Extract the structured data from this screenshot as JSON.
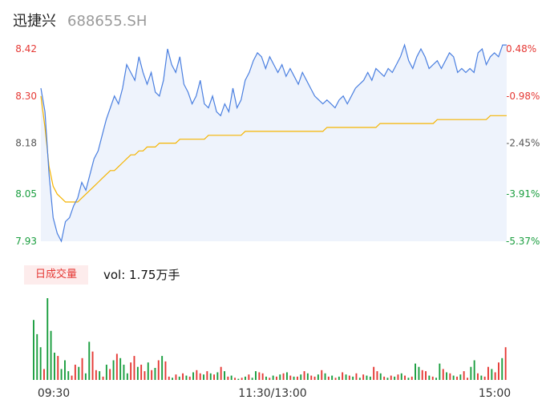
{
  "header": {
    "name": "迅捷兴",
    "code": "688655.SH"
  },
  "volume_panel": {
    "badge": "日成交量",
    "vol_label": "vol: 1.75万手"
  },
  "colors": {
    "up": "#e53935",
    "down": "#1a9e3f",
    "neutral": "#555555",
    "price_line": "#4a7fe0",
    "avg_line": "#f5b400",
    "area_fill": "#eef3fc"
  },
  "chart_data": [
    {
      "type": "line",
      "title": "",
      "x_tick_labels": [
        "09:30",
        "11:30/13:00",
        "15:00"
      ],
      "y_left_ticks": [
        8.42,
        8.3,
        8.18,
        8.05,
        7.93
      ],
      "y_left_tick_labels": [
        "8.42",
        "8.30",
        "8.18",
        "8.05",
        "7.93"
      ],
      "y_right_tick_labels": [
        "0.48%",
        "-0.98%",
        "-2.45%",
        "-3.91%",
        "-5.37%"
      ],
      "ylim": [
        7.93,
        8.42
      ],
      "series": [
        {
          "role": "price",
          "values": [
            8.32,
            8.26,
            8.1,
            7.99,
            7.95,
            7.93,
            7.98,
            7.99,
            8.02,
            8.04,
            8.08,
            8.06,
            8.1,
            8.14,
            8.16,
            8.2,
            8.24,
            8.27,
            8.3,
            8.28,
            8.32,
            8.38,
            8.36,
            8.34,
            8.4,
            8.36,
            8.33,
            8.36,
            8.31,
            8.3,
            8.34,
            8.42,
            8.38,
            8.36,
            8.4,
            8.33,
            8.31,
            8.28,
            8.3,
            8.34,
            8.28,
            8.27,
            8.3,
            8.26,
            8.25,
            8.28,
            8.26,
            8.32,
            8.27,
            8.29,
            8.34,
            8.36,
            8.39,
            8.41,
            8.4,
            8.37,
            8.4,
            8.38,
            8.36,
            8.38,
            8.35,
            8.37,
            8.35,
            8.33,
            8.36,
            8.34,
            8.32,
            8.3,
            8.29,
            8.28,
            8.29,
            8.28,
            8.27,
            8.29,
            8.3,
            8.28,
            8.3,
            8.32,
            8.33,
            8.34,
            8.36,
            8.34,
            8.37,
            8.36,
            8.35,
            8.37,
            8.36,
            8.38,
            8.4,
            8.43,
            8.39,
            8.37,
            8.4,
            8.42,
            8.4,
            8.37,
            8.38,
            8.39,
            8.37,
            8.39,
            8.41,
            8.4,
            8.36,
            8.37,
            8.36,
            8.37,
            8.36,
            8.41,
            8.42,
            8.38,
            8.4,
            8.41,
            8.4,
            8.43,
            8.43
          ],
          "color": "#4a7fe0"
        },
        {
          "role": "average",
          "values": [
            8.3,
            8.22,
            8.12,
            8.07,
            8.05,
            8.04,
            8.03,
            8.03,
            8.03,
            8.03,
            8.04,
            8.05,
            8.06,
            8.07,
            8.08,
            8.09,
            8.1,
            8.11,
            8.11,
            8.12,
            8.13,
            8.14,
            8.15,
            8.15,
            8.16,
            8.16,
            8.17,
            8.17,
            8.17,
            8.18,
            8.18,
            8.18,
            8.18,
            8.18,
            8.19,
            8.19,
            8.19,
            8.19,
            8.19,
            8.19,
            8.19,
            8.2,
            8.2,
            8.2,
            8.2,
            8.2,
            8.2,
            8.2,
            8.2,
            8.2,
            8.21,
            8.21,
            8.21,
            8.21,
            8.21,
            8.21,
            8.21,
            8.21,
            8.21,
            8.21,
            8.21,
            8.21,
            8.21,
            8.21,
            8.21,
            8.21,
            8.21,
            8.21,
            8.21,
            8.21,
            8.22,
            8.22,
            8.22,
            8.22,
            8.22,
            8.22,
            8.22,
            8.22,
            8.22,
            8.22,
            8.22,
            8.22,
            8.22,
            8.23,
            8.23,
            8.23,
            8.23,
            8.23,
            8.23,
            8.23,
            8.23,
            8.23,
            8.23,
            8.23,
            8.23,
            8.23,
            8.23,
            8.24,
            8.24,
            8.24,
            8.24,
            8.24,
            8.24,
            8.24,
            8.24,
            8.24,
            8.24,
            8.24,
            8.24,
            8.24,
            8.25,
            8.25,
            8.25,
            8.25,
            8.25
          ],
          "color": "#f5b400"
        }
      ]
    },
    {
      "type": "bar",
      "title": "",
      "values": [
        55,
        42,
        30,
        10,
        75,
        45,
        25,
        22,
        10,
        18,
        8,
        4,
        14,
        12,
        20,
        6,
        35,
        26,
        9,
        8,
        3,
        14,
        10,
        18,
        24,
        20,
        14,
        6,
        16,
        22,
        12,
        14,
        8,
        16,
        9,
        11,
        18,
        22,
        17,
        3,
        2,
        5,
        3,
        6,
        4,
        3,
        7,
        9,
        6,
        5,
        8,
        6,
        5,
        7,
        12,
        8,
        3,
        4,
        2,
        1,
        2,
        3,
        5,
        2,
        8,
        7,
        6,
        3,
        2,
        4,
        3,
        5,
        6,
        7,
        4,
        3,
        3,
        5,
        8,
        6,
        4,
        3,
        5,
        9,
        6,
        3,
        4,
        2,
        3,
        7,
        5,
        4,
        3,
        6,
        2,
        5,
        4,
        3,
        12,
        8,
        6,
        3,
        2,
        4,
        3,
        5,
        6,
        4,
        2,
        3,
        15,
        12,
        9,
        8,
        4,
        3,
        2,
        15,
        10,
        7,
        6,
        4,
        3,
        5,
        8,
        2,
        12,
        18,
        6,
        4,
        3,
        12,
        10,
        7,
        16,
        20,
        30
      ],
      "direction": [
        "down",
        "down",
        "down",
        "up",
        "down",
        "down",
        "down",
        "up",
        "down",
        "down",
        "down",
        "up",
        "up",
        "down",
        "up",
        "down",
        "down",
        "up",
        "up",
        "down",
        "up",
        "down",
        "up",
        "down",
        "up",
        "down",
        "down",
        "down",
        "up",
        "up",
        "down",
        "up",
        "up",
        "down",
        "up",
        "down",
        "up",
        "down",
        "up",
        "up",
        "down",
        "up",
        "down",
        "up",
        "down",
        "up",
        "down",
        "up",
        "up",
        "down",
        "up",
        "down",
        "up",
        "down",
        "up",
        "down",
        "up",
        "down",
        "up",
        "down",
        "up",
        "down",
        "up",
        "down",
        "down",
        "up",
        "up",
        "down",
        "up",
        "down",
        "up",
        "down",
        "up",
        "down",
        "up",
        "down",
        "up",
        "down",
        "up",
        "down",
        "up",
        "up",
        "down",
        "up",
        "down",
        "up",
        "down",
        "up",
        "down",
        "up",
        "down",
        "up",
        "down",
        "up",
        "down",
        "up",
        "down",
        "down",
        "up",
        "up",
        "down",
        "up",
        "down",
        "up",
        "down",
        "up",
        "down",
        "up",
        "down",
        "up",
        "down",
        "down",
        "up",
        "up",
        "down",
        "up",
        "down",
        "down",
        "up",
        "down",
        "up",
        "down",
        "up",
        "down",
        "up",
        "up",
        "down",
        "down",
        "up",
        "down",
        "up",
        "up",
        "down",
        "up",
        "up",
        "down",
        "up"
      ]
    }
  ]
}
